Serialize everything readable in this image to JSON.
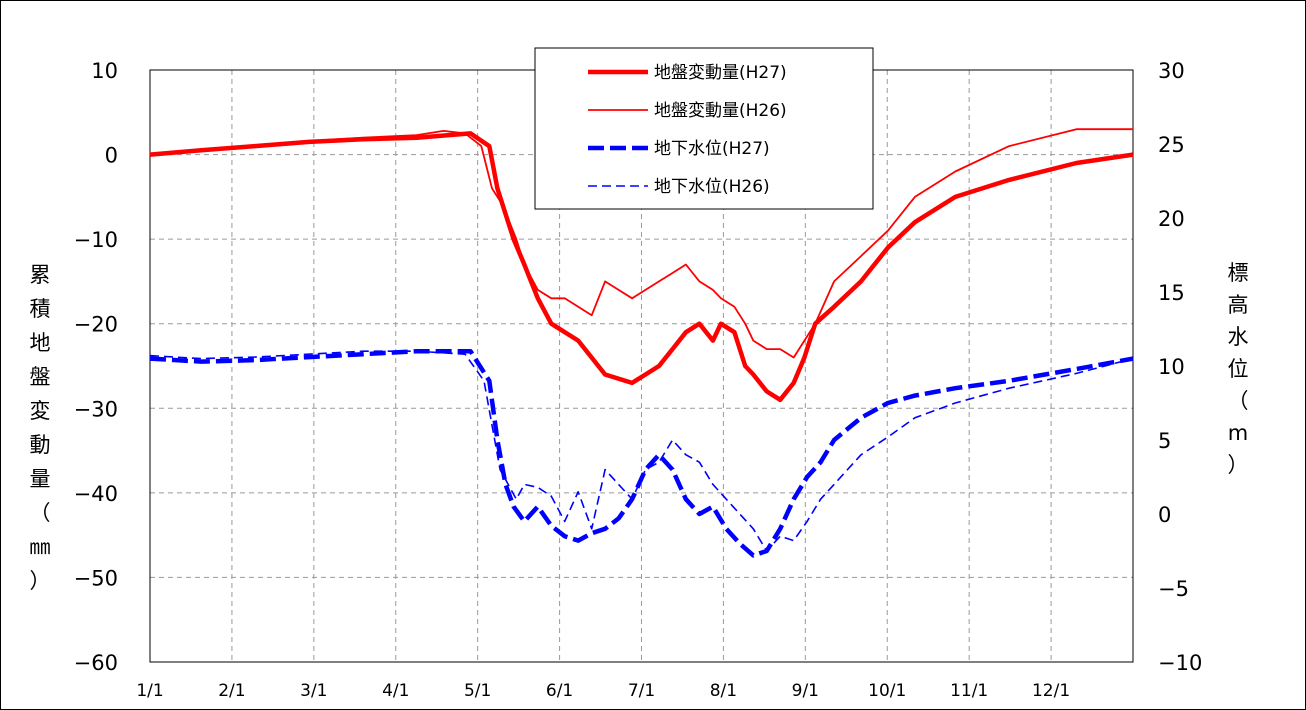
{
  "chart_data": {
    "type": "line",
    "xlabel": "",
    "x_ticks": [
      "1/1",
      "2/1",
      "3/1",
      "4/1",
      "5/1",
      "6/1",
      "7/1",
      "8/1",
      "9/1",
      "10/1",
      "11/1",
      "12/1"
    ],
    "x_range": [
      1,
      366
    ],
    "ylabel_left": "累積地盤変動量（㎜）",
    "ylabel_left_chars": [
      "累",
      "積",
      "地",
      "盤",
      "変",
      "動",
      "量",
      "（",
      "㎜",
      "）"
    ],
    "ylim_left": [
      -60,
      10
    ],
    "yticks_left": [
      "10",
      "0",
      "−10",
      "−20",
      "−30",
      "−40",
      "−50",
      "−60"
    ],
    "ylabel_right": "標高水位（m）",
    "ylabel_right_chars": [
      "標",
      "高",
      "水",
      "位",
      "（",
      "m",
      "）"
    ],
    "ylim_right": [
      -10,
      30
    ],
    "yticks_right": [
      "30",
      "25",
      "20",
      "15",
      "10",
      "5",
      "0",
      "−5",
      "−10"
    ],
    "grid": true,
    "legend_position": "top-center",
    "series": [
      {
        "name": "地盤変動量(H27)",
        "axis": "left",
        "color": "#ff0000",
        "style": "solid-thick",
        "x": [
          1,
          20,
          40,
          60,
          80,
          100,
          120,
          127,
          130,
          133,
          136,
          140,
          145,
          150,
          160,
          170,
          180,
          185,
          190,
          195,
          200,
          205,
          210,
          213,
          218,
          222,
          225,
          230,
          235,
          240,
          244,
          248,
          255,
          265,
          275,
          285,
          300,
          320,
          345,
          366
        ],
        "y": [
          0,
          0.5,
          1,
          1.5,
          1.8,
          2,
          2.5,
          1,
          -4,
          -7,
          -10,
          -13,
          -17,
          -20,
          -22,
          -26,
          -27,
          -26,
          -25,
          -23,
          -21,
          -20,
          -22,
          -20,
          -21,
          -25,
          -26,
          -28,
          -29,
          -27,
          -24,
          -20,
          -18,
          -15,
          -11,
          -8,
          -5,
          -3,
          -1,
          0
        ]
      },
      {
        "name": "地盤変動量(H26)",
        "axis": "left",
        "color": "#ff0000",
        "style": "solid-thin",
        "x": [
          1,
          20,
          40,
          60,
          80,
          100,
          110,
          118,
          124,
          128,
          132,
          137,
          140,
          145,
          150,
          155,
          160,
          165,
          170,
          175,
          180,
          185,
          190,
          195,
          200,
          205,
          210,
          213,
          218,
          222,
          225,
          230,
          235,
          240,
          244,
          248,
          255,
          265,
          275,
          285,
          300,
          320,
          345,
          366
        ],
        "y": [
          0,
          0.6,
          1.1,
          1.6,
          2,
          2.3,
          2.8,
          2.5,
          1,
          -4,
          -6,
          -10,
          -13,
          -16,
          -17,
          -17,
          -18,
          -19,
          -15,
          -16,
          -17,
          -16,
          -15,
          -14,
          -13,
          -15,
          -16,
          -17,
          -18,
          -20,
          -22,
          -23,
          -23,
          -24,
          -22,
          -20,
          -15,
          -12,
          -9,
          -5,
          -2,
          1,
          3,
          3
        ]
      },
      {
        "name": "地下水位(H27)",
        "axis": "right",
        "color": "#0000ff",
        "style": "dash-thick",
        "x": [
          1,
          20,
          40,
          60,
          80,
          100,
          120,
          127,
          130,
          133,
          136,
          140,
          145,
          150,
          155,
          160,
          165,
          170,
          175,
          180,
          185,
          190,
          195,
          200,
          205,
          210,
          215,
          220,
          225,
          230,
          235,
          240,
          245,
          250,
          255,
          265,
          275,
          285,
          300,
          320,
          345,
          366
        ],
        "y": [
          10.5,
          10.3,
          10.4,
          10.6,
          10.8,
          11,
          11,
          9,
          5,
          2,
          0.5,
          -0.5,
          0.5,
          -0.8,
          -1.5,
          -1.8,
          -1.3,
          -1,
          -0.3,
          1,
          3,
          4,
          3,
          1,
          0,
          0.5,
          -1,
          -2,
          -2.8,
          -2.5,
          -1,
          1,
          2.5,
          3.5,
          5,
          6.5,
          7.5,
          8,
          8.5,
          9,
          9.8,
          10.5
        ]
      },
      {
        "name": "地下水位(H26)",
        "axis": "right",
        "color": "#0000ff",
        "style": "dash-thin",
        "x": [
          1,
          20,
          40,
          60,
          80,
          100,
          118,
          125,
          128,
          131,
          134,
          137,
          140,
          145,
          150,
          155,
          160,
          165,
          170,
          175,
          180,
          185,
          190,
          195,
          200,
          205,
          210,
          215,
          220,
          225,
          230,
          235,
          240,
          245,
          250,
          255,
          260,
          265,
          275,
          285,
          300,
          320,
          345,
          366
        ],
        "y": [
          10.7,
          10.5,
          10.6,
          10.8,
          11,
          11,
          10.8,
          9,
          6,
          3,
          2,
          1,
          2,
          1.8,
          1.2,
          -0.5,
          1.5,
          -1,
          3,
          2,
          1,
          3,
          3.5,
          5,
          4,
          3.5,
          2,
          1,
          0,
          -1,
          -2.5,
          -1.5,
          -1.8,
          -0.5,
          1,
          2,
          3,
          4,
          5.2,
          6.5,
          7.5,
          8.5,
          9.5,
          10.5
        ]
      }
    ]
  }
}
